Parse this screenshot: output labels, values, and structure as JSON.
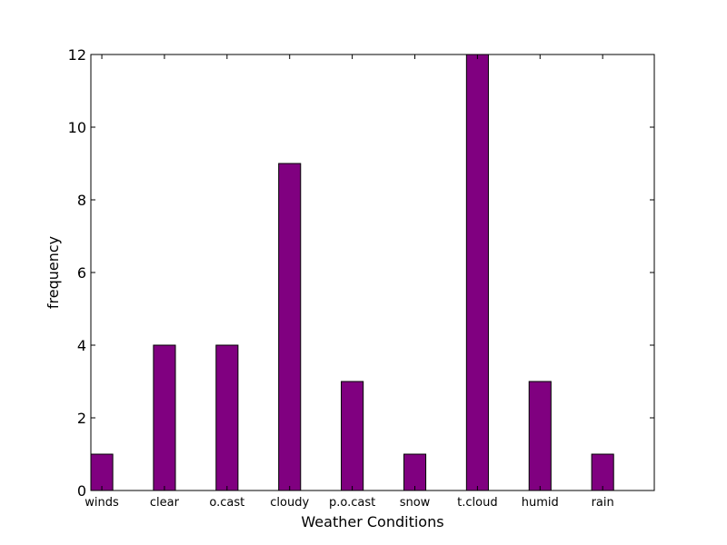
{
  "chart_data": {
    "type": "bar",
    "categories": [
      "winds",
      "clear",
      "o.cast",
      "cloudy",
      "p.o.cast",
      "snow",
      "t.cloud",
      "humid",
      "rain"
    ],
    "values": [
      1,
      4,
      4,
      9,
      3,
      1,
      12,
      3,
      1
    ],
    "xlabel": "Weather Conditions",
    "ylabel": "frequency",
    "ylim": [
      0,
      12
    ],
    "yticks": [
      "0",
      "2",
      "4",
      "6",
      "8",
      "10",
      "12"
    ],
    "bar_color": "#800080",
    "edge_color": "#000000",
    "grid": false
  }
}
